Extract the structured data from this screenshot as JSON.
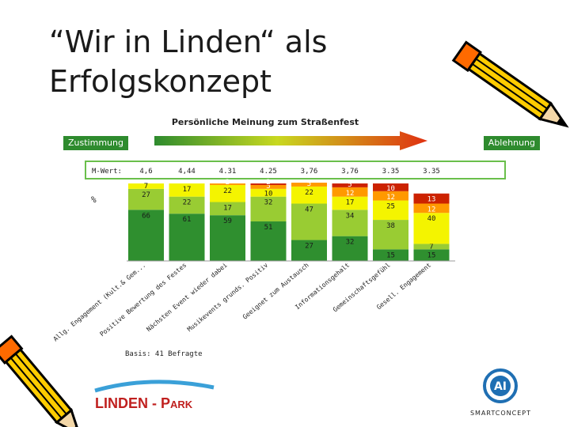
{
  "slide": {
    "title_line1": "“Wir in Linden“ als",
    "title_line2": "Erfolgskonzept"
  },
  "scale": {
    "left_label": "Zustimmung",
    "right_label": "Ablehnung"
  },
  "mwert": {
    "label": "M-Wert:",
    "values": [
      "4,6",
      "4,44",
      "4.31",
      "4.25",
      "3,76",
      "3,76",
      "3.35",
      "3.35"
    ]
  },
  "percent_label": "%",
  "basis": "Basis: 41 Befragte",
  "logos": {
    "linden_part1": "LINDEN - P",
    "linden_part2": "ARK",
    "smart": "SMARTCONCEPT"
  },
  "colors": {
    "green": "#2f8f2f",
    "light_green": "#99cc33",
    "yellow": "#f4f400",
    "orange": "#ff9900",
    "red": "#cc2200",
    "arrow_start": "#2e8b2e",
    "arrow_end": "#e03010",
    "box_border": "#6abf4b"
  },
  "icons": [
    "pencil-icon",
    "linden-park-logo-icon",
    "smartconcept-logo-icon"
  ],
  "chart_data": {
    "type": "bar",
    "stacked": true,
    "title": "Persönliche Meinung zum Straßenfest",
    "ylabel": "%",
    "ylim": [
      0,
      100
    ],
    "categories": [
      "Allg. Engagement (Kult.& Gem...",
      "Positive Bewertung des Festes",
      "Nächsten Event wieder dabei",
      "Musikevents grunds. Positiv",
      "Geeignet zum Austausch",
      "Informationsgehalt",
      "Gemeinschaftsgefühl",
      "Gesell. Engagement"
    ],
    "series": [
      {
        "values": [
          66,
          61,
          59,
          51,
          27,
          32,
          15,
          15
        ],
        "labels": [
          "66",
          "61",
          "59",
          "51",
          "27",
          "32",
          "15",
          "15"
        ]
      },
      {
        "values": [
          27,
          22,
          17,
          32,
          47,
          34,
          38,
          7
        ],
        "labels": [
          "27",
          "22",
          "17",
          "32",
          "47",
          "34",
          "38",
          "7"
        ]
      },
      {
        "values": [
          7,
          17,
          22,
          10,
          22,
          17,
          25,
          40
        ],
        "labels": [
          "7",
          "17",
          "22",
          "10",
          "22",
          "17",
          "25",
          "40"
        ]
      },
      {
        "values": [
          0,
          0,
          2,
          5,
          5,
          12,
          12,
          12
        ],
        "labels": [
          "",
          "",
          "2",
          "5",
          "5",
          "12",
          "12",
          "12"
        ]
      },
      {
        "values": [
          0,
          0,
          0,
          2,
          0,
          5,
          10,
          13
        ],
        "labels": [
          "",
          "",
          "",
          "2",
          "",
          "5",
          "10",
          "13"
        ]
      }
    ]
  }
}
